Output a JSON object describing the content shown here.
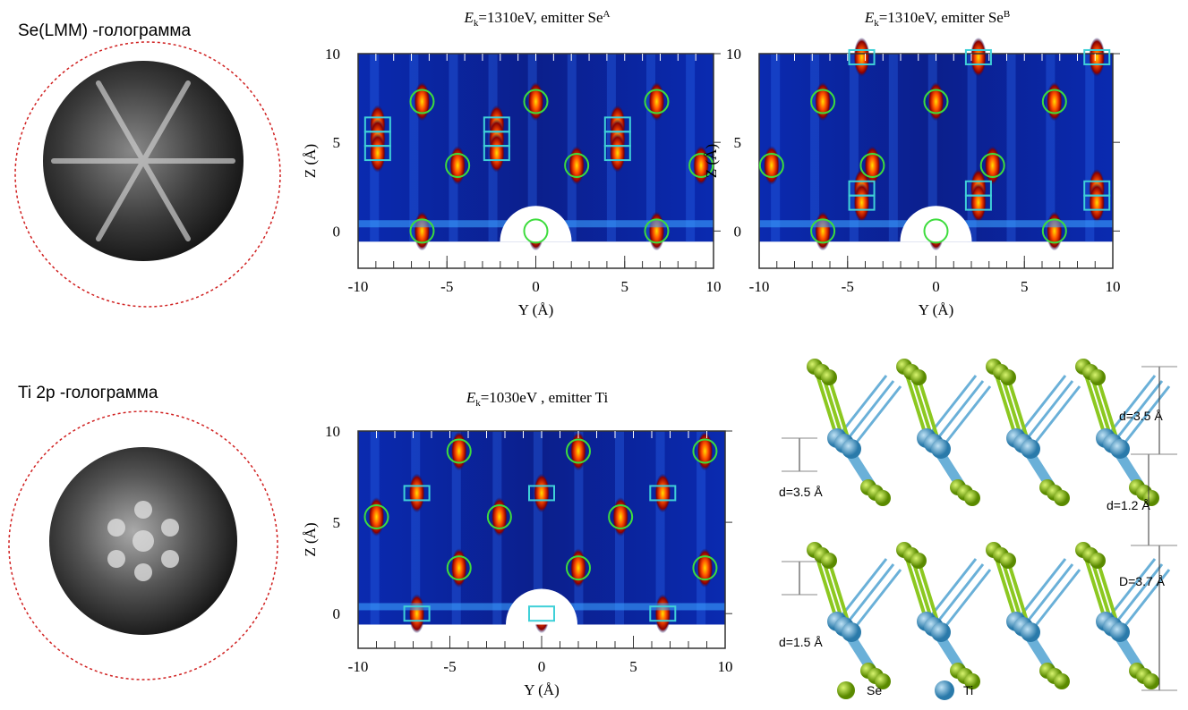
{
  "holograms": [
    "Se(LMM) -голограмма",
    "Ti 2p -голограмма"
  ],
  "chart_data": [
    {
      "type": "scatter",
      "title": [
        "E",
        "k",
        "=1310eV, emitter Se",
        "A"
      ],
      "xlabel": "Y (Å)",
      "ylabel": "Z (Å)",
      "xlim": [
        -10,
        10
      ],
      "ylim": [
        -2.1,
        10
      ],
      "xticks": [
        -10,
        -5,
        0,
        5,
        10
      ],
      "yticks": [
        0,
        5,
        10
      ],
      "series": [
        {
          "marker": "circle",
          "color": "#3ddc3d",
          "x": [
            -6.4,
            0,
            6.8,
            -4.4,
            2.3,
            9.3,
            -6.4,
            0,
            6.8
          ],
          "values": [
            7.3,
            7.3,
            7.3,
            3.7,
            3.7,
            3.7,
            0,
            0,
            0
          ]
        },
        {
          "marker": "square",
          "color": "#3fd0d8",
          "x": [
            -8.9,
            -8.9,
            -8.9,
            -2.2,
            -2.2,
            -2.2,
            4.6,
            4.6,
            4.6
          ],
          "values": [
            6,
            5.2,
            4.4,
            6,
            5.2,
            4.4,
            6,
            5.2,
            4.4
          ]
        }
      ]
    },
    {
      "type": "scatter",
      "title": [
        "E",
        "k",
        "=1310eV, emitter Se",
        "B"
      ],
      "xlabel": "Y (Å)",
      "ylabel": "Z (Å)",
      "xlim": [
        -10,
        10
      ],
      "ylim": [
        -2.1,
        10
      ],
      "xticks": [
        -10,
        -5,
        0,
        5,
        10
      ],
      "yticks": [
        0,
        5,
        10
      ],
      "series": [
        {
          "marker": "circle",
          "color": "#3ddc3d",
          "x": [
            -6.4,
            0,
            6.7,
            -9.3,
            -3.6,
            3.2,
            -6.4,
            0,
            6.7
          ],
          "values": [
            7.3,
            7.3,
            7.3,
            3.7,
            3.7,
            3.7,
            0,
            0,
            0
          ]
        },
        {
          "marker": "square",
          "color": "#3fd0d8",
          "x": [
            -4.2,
            2.4,
            9.1,
            -4.2,
            2.4,
            9.1,
            -4.2,
            2.4,
            9.1
          ],
          "values": [
            9.8,
            9.8,
            9.8,
            2.4,
            2.4,
            2.4,
            1.6,
            1.6,
            1.6
          ]
        }
      ]
    },
    {
      "type": "scatter",
      "title": [
        "E",
        "k",
        "=1030eV , emitter Ti"
      ],
      "xlabel": "Y (Å)",
      "ylabel": "Z (Å)",
      "xlim": [
        -10,
        10
      ],
      "ylim": [
        -1.9,
        10
      ],
      "xticks": [
        -10,
        -5,
        0,
        5,
        10
      ],
      "yticks": [
        0,
        5,
        10
      ],
      "series": [
        {
          "marker": "circle",
          "color": "#3ddc3d",
          "x": [
            -9,
            -4.5,
            -2.3,
            2,
            4.3,
            8.9,
            -4.5,
            2,
            8.9
          ],
          "values": [
            5.3,
            8.9,
            5.3,
            8.9,
            5.3,
            8.9,
            2.5,
            2.5,
            2.5
          ]
        },
        {
          "marker": "square",
          "color": "#3fd0d8",
          "x": [
            -6.8,
            0,
            6.6,
            -6.8,
            0,
            6.6
          ],
          "values": [
            6.6,
            6.6,
            6.6,
            0,
            0,
            0
          ]
        }
      ]
    }
  ],
  "structure": {
    "labels": [
      "d=3.5 Å",
      "d=1.2 Å",
      "D=3.7 Å",
      "d=3.5 Å",
      "d=1.5 Å"
    ],
    "legend": [
      "Se",
      "Ti"
    ]
  }
}
